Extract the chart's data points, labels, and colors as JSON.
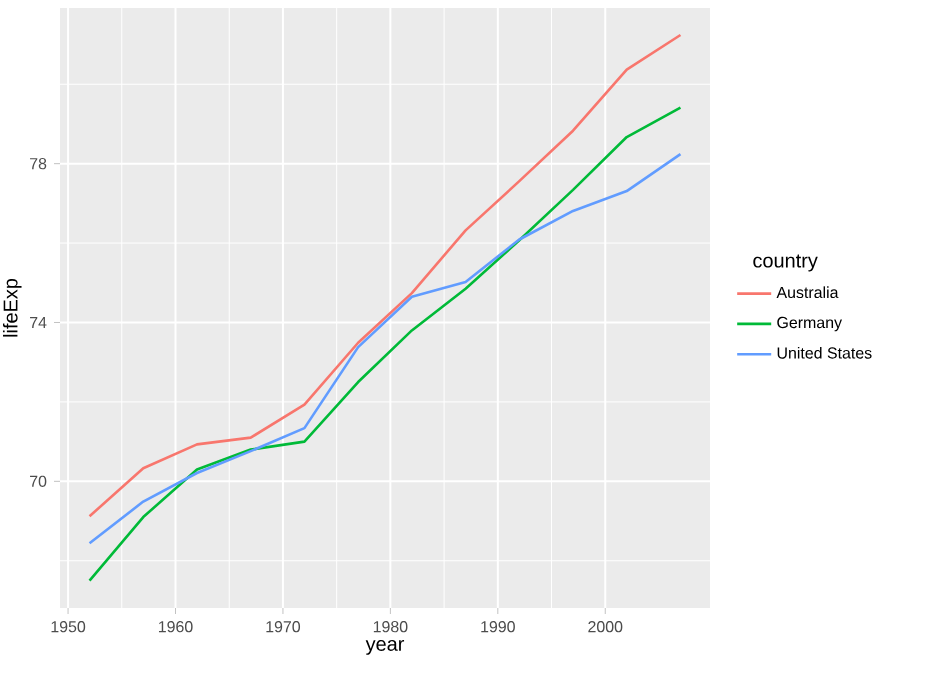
{
  "chart_data": {
    "type": "line",
    "xlabel": "year",
    "ylabel": "lifeExp",
    "legend_title": "country",
    "x": [
      1952,
      1957,
      1962,
      1967,
      1972,
      1977,
      1982,
      1987,
      1992,
      1997,
      2002,
      2007
    ],
    "series": [
      {
        "name": "Australia",
        "color": "#f8766d",
        "values": [
          69.12,
          70.33,
          70.93,
          71.1,
          71.93,
          73.49,
          74.74,
          76.32,
          77.56,
          78.83,
          80.37,
          81.24
        ]
      },
      {
        "name": "Germany",
        "color": "#00ba38",
        "values": [
          67.5,
          69.1,
          70.3,
          70.8,
          71.0,
          72.5,
          73.8,
          74.85,
          76.07,
          77.34,
          78.67,
          79.41
        ]
      },
      {
        "name": "United States",
        "color": "#619cff",
        "values": [
          68.44,
          69.49,
          70.21,
          70.76,
          71.34,
          73.38,
          74.65,
          75.02,
          76.09,
          76.81,
          77.31,
          78.24
        ]
      }
    ],
    "xlim": [
      1949.25,
      2009.75
    ],
    "ylim": [
      66.81,
      81.92
    ],
    "xticks": [
      1950,
      1960,
      1970,
      1980,
      1990,
      2000
    ],
    "yticks": [
      70,
      74,
      78
    ],
    "grid": true,
    "legend": "right",
    "marker": "none",
    "line_style": "solid"
  }
}
